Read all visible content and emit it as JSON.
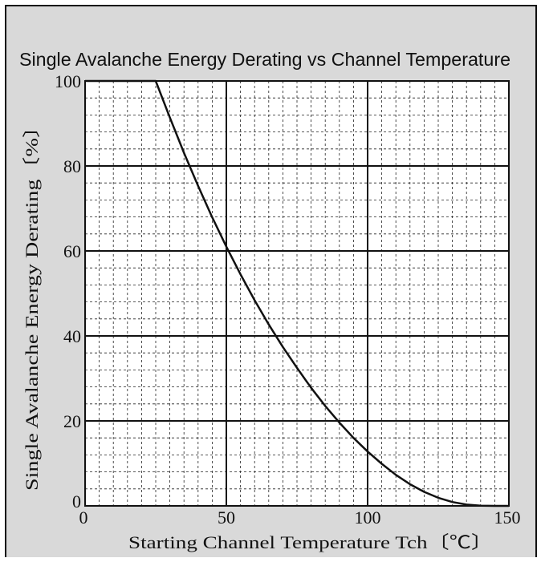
{
  "chart_data": {
    "type": "line",
    "title": "Single Avalanche Energy Derating vs Channel Temperature",
    "xlabel": "Starting Channel Temperature  Tch〔℃〕",
    "ylabel": "Single Avalanche Energy Derating〔%〕",
    "xlim": [
      0,
      150
    ],
    "ylim": [
      0,
      100
    ],
    "x_ticks": [
      0,
      50,
      100,
      150
    ],
    "y_ticks": [
      0,
      20,
      40,
      60,
      80,
      100
    ],
    "x_tick_labels": [
      "0",
      "50",
      "100",
      "150"
    ],
    "y_tick_labels": [
      "0",
      "20",
      "40",
      "60",
      "80",
      "100"
    ],
    "grid": true,
    "major_grid_step": {
      "x": 50,
      "y": 20
    },
    "minor_grid_step": {
      "x": 5,
      "y": 4
    },
    "colors": {
      "background": "#d9d9d9",
      "plot_area": "#ffffff",
      "line": "#111111"
    },
    "series": [
      {
        "x": [
          0,
          25,
          30,
          35,
          40,
          45,
          50,
          55,
          60,
          65,
          70,
          75,
          80,
          85,
          90,
          95,
          100,
          105,
          110,
          115,
          120,
          125,
          130,
          135,
          140,
          145,
          150
        ],
        "y": [
          100,
          100,
          91.4,
          83.1,
          75.3,
          67.9,
          61.0,
          54.5,
          48.4,
          42.7,
          37.4,
          32.5,
          27.8,
          23.5,
          19.6,
          16.0,
          12.8,
          9.9,
          7.3,
          5.1,
          3.3,
          1.9,
          0.9,
          0.3,
          0.05,
          0,
          0
        ]
      }
    ]
  }
}
